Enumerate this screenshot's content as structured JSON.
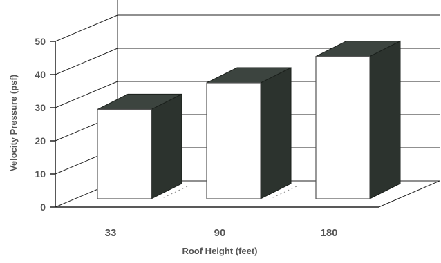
{
  "chart_data": {
    "type": "bar",
    "style": "3d-column",
    "categories": [
      "33",
      "90",
      "180"
    ],
    "values": [
      27,
      35,
      43
    ],
    "xlabel": "Roof Height (feet)",
    "ylabel": "Velocity Pressure (psf)",
    "ylim": [
      0,
      50
    ],
    "yticks": [
      "0",
      "10",
      "20",
      "30",
      "40",
      "50"
    ],
    "grid": true,
    "legend": "none",
    "colors": {
      "bar_front": "#ffffff",
      "bar_side": "#2c332e",
      "bar_top": "#3c443f",
      "grid": "#222222",
      "text": "#555555"
    }
  }
}
